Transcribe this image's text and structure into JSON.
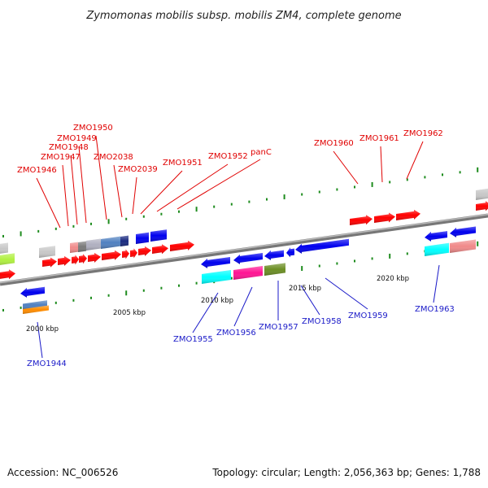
{
  "title": "Zymomonas mobilis subsp. mobilis ZM4, complete genome",
  "footer": {
    "accession": "Accession: NC_006526",
    "summary": "Topology: circular; Length: 2,056,363 bp; Genes: 1,788"
  },
  "scale_labels": [
    "2000 kbp",
    "2005 kbp",
    "2010 kbp",
    "2015 kbp",
    "2020 kbp"
  ],
  "genes_top": [
    {
      "name": "ZMO1946"
    },
    {
      "name": "ZMO1947"
    },
    {
      "name": "ZMO1948"
    },
    {
      "name": "ZMO1949"
    },
    {
      "name": "ZMO1950"
    },
    {
      "name": "ZMO2038"
    },
    {
      "name": "ZMO2039"
    },
    {
      "name": "ZMO1951"
    },
    {
      "name": "ZMO1952"
    },
    {
      "name": "panC"
    },
    {
      "name": "ZMO1960"
    },
    {
      "name": "ZMO1961"
    },
    {
      "name": "ZMO1962"
    }
  ],
  "genes_bottom": [
    {
      "name": "ZMO1944"
    },
    {
      "name": "ZMO1955"
    },
    {
      "name": "ZMO1956"
    },
    {
      "name": "ZMO1957"
    },
    {
      "name": "ZMO1958"
    },
    {
      "name": "ZMO1959"
    },
    {
      "name": "ZMO1963"
    }
  ],
  "colors": {
    "forward": "#ff0000",
    "reverse": "#0000ee",
    "backbone": "#8c8c8c",
    "tick": "#1e8c1e",
    "label_forward": "#e00000",
    "label_reverse": "#1a1ac8"
  }
}
